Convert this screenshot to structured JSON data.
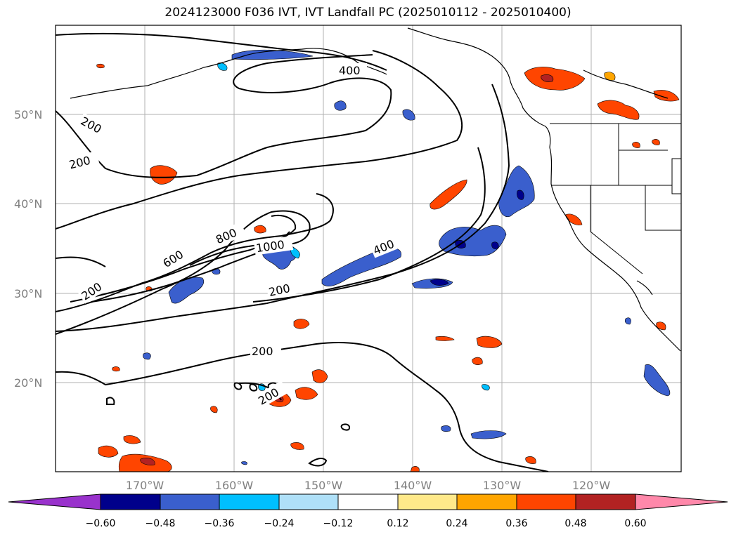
{
  "title": "2024123000 F036 IVT, IVT Landfall PC (2025010112 - 2025010400)",
  "lat_ticks": [
    "50°N",
    "40°N",
    "30°N",
    "20°N"
  ],
  "lon_ticks": [
    "170°W",
    "160°W",
    "150°W",
    "140°W",
    "130°W",
    "120°W"
  ],
  "contour_labels": [
    "400",
    "200",
    "200",
    "800",
    "600",
    "1000",
    "400",
    "200",
    "200",
    "200",
    "200"
  ],
  "colorbar": {
    "labels": [
      "−0.60",
      "−0.48",
      "−0.36",
      "−0.24",
      "−0.12",
      "0.12",
      "0.24",
      "0.36",
      "0.48",
      "0.60"
    ],
    "colors": [
      "#9932cc",
      "#00008b",
      "#3a5fcd",
      "#00bfff",
      "#afe0f8",
      "#ffffff",
      "#ffe98a",
      "#ffa500",
      "#ff4500",
      "#b22222",
      "#ff88aa"
    ]
  }
}
